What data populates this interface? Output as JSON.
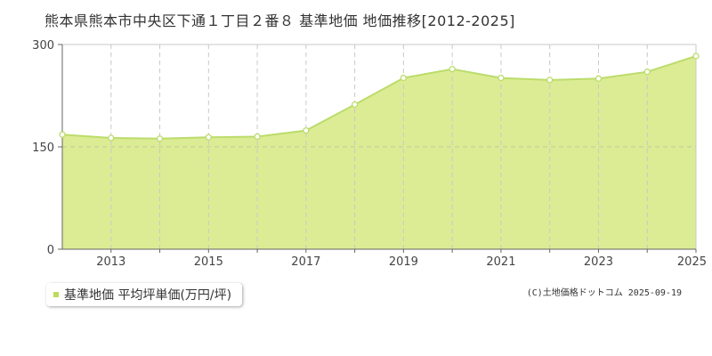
{
  "title": "熊本県熊本市中央区下通１丁目２番８ 基準地価 地価推移[2012-2025]",
  "legend": {
    "label": "基準地価 平均坪単価(万円/坪)"
  },
  "credit": "(C)土地価格ドットコム 2025-09-19",
  "colors": {
    "area": "#dcec94",
    "line": "#bcdc6c",
    "grid": "#c8c8c8",
    "marker_fill": "#ffffff",
    "legend_swatch": "#bcdc5c"
  },
  "chart_data": {
    "type": "area",
    "title": "熊本県熊本市中央区下通１丁目２番８ 基準地価 地価推移[2012-2025]",
    "xlabel": "",
    "ylabel": "",
    "x": [
      2012,
      2013,
      2014,
      2015,
      2016,
      2017,
      2018,
      2019,
      2020,
      2021,
      2022,
      2023,
      2024,
      2025
    ],
    "series": [
      {
        "name": "基準地価 平均坪単価(万円/坪)",
        "values": [
          168,
          163,
          162,
          164,
          165,
          174,
          212,
          251,
          264,
          251,
          248,
          250,
          260,
          283
        ]
      }
    ],
    "xlim": [
      2012,
      2025
    ],
    "ylim": [
      0,
      300
    ],
    "yticks": [
      0,
      150,
      300
    ],
    "xticks": [
      2013,
      2015,
      2017,
      2019,
      2021,
      2023,
      2025
    ],
    "grid": true,
    "legend_position": "bottom-left"
  }
}
